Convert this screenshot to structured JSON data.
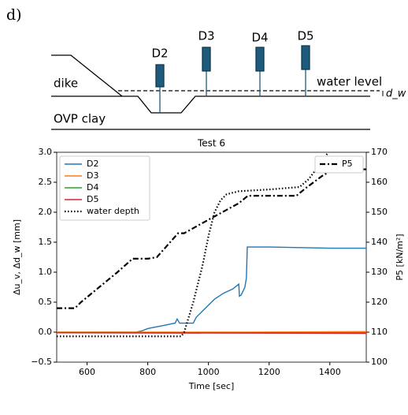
{
  "panel_label": "d)",
  "diagram": {
    "sensors": [
      "D2",
      "D3",
      "D4",
      "D5"
    ],
    "dike": "dike",
    "water_level": "water level",
    "clay": "OVP clay",
    "water_depth": "d_w"
  },
  "chart_data": {
    "type": "line",
    "title": "Test 6",
    "x_label": "Time [sec]",
    "y_label": "Δu_v, Δd_w  [mm]",
    "y2_label": "P5  [kN/m²]",
    "xlim": [
      500,
      1520
    ],
    "xticks": [
      600,
      800,
      1000,
      1200,
      1400
    ],
    "ylim": [
      -0.5,
      3.0
    ],
    "yticks": [
      {
        "value": -0.5,
        "label": "−0.5"
      },
      {
        "value": 0,
        "label": "0.0"
      },
      0.5,
      {
        "value": 1,
        "label": "1.0"
      },
      1.5,
      {
        "value": 2,
        "label": "2.0"
      },
      2.5,
      {
        "value": 3,
        "label": "3.0"
      }
    ],
    "y2lim": [
      100,
      170
    ],
    "y2ticks": [
      100,
      110,
      120,
      130,
      140,
      150,
      160,
      170
    ],
    "series": [
      {
        "name": "D2",
        "color": "#1f77b4",
        "linestyle": "solid",
        "x": [
          500,
          760,
          780,
          800,
          850,
          880,
          890,
          897,
          905,
          950,
          960,
          980,
          1000,
          1020,
          1050,
          1080,
          1095,
          1100,
          1102,
          1108,
          1120,
          1125,
          1128,
          1200,
          1300,
          1400,
          1520
        ],
        "values": [
          0,
          0,
          0.02,
          0.06,
          0.11,
          0.14,
          0.15,
          0.22,
          0.15,
          0.15,
          0.25,
          0.35,
          0.45,
          0.55,
          0.65,
          0.72,
          0.78,
          0.8,
          0.6,
          0.62,
          0.75,
          0.9,
          1.42,
          1.42,
          1.41,
          1.4,
          1.4
        ]
      },
      {
        "name": "D3",
        "color": "#ff7f0e",
        "linestyle": "solid",
        "x": [
          500,
          1120,
          1520
        ],
        "values": [
          0,
          0,
          0.01
        ]
      },
      {
        "name": "D4",
        "color": "#2ca02c",
        "linestyle": "solid",
        "x": [
          500,
          1520
        ],
        "values": [
          -0.01,
          -0.01
        ]
      },
      {
        "name": "D5",
        "color": "#d62728",
        "linestyle": "solid",
        "x": [
          500,
          1520
        ],
        "values": [
          -0.01,
          -0.02
        ]
      },
      {
        "name": "water depth",
        "color": "#000000",
        "linestyle": "dotted",
        "x": [
          500,
          910,
          920,
          950,
          980,
          1000,
          1020,
          1040,
          1060,
          1100,
          1200,
          1300,
          1330,
          1360,
          1395
        ],
        "values": [
          -0.07,
          -0.07,
          0.0,
          0.5,
          1.1,
          1.6,
          2.0,
          2.2,
          2.3,
          2.35,
          2.38,
          2.42,
          2.55,
          2.75,
          3.0
        ]
      },
      {
        "name": "P5",
        "color": "#000000",
        "linestyle": "dashdot",
        "axis": "y2",
        "x": [
          500,
          560,
          580,
          700,
          750,
          800,
          830,
          900,
          920,
          1000,
          1100,
          1130,
          1200,
          1290,
          1320,
          1380,
          1400,
          1450,
          1520
        ],
        "values": [
          118,
          118,
          120,
          130,
          134.5,
          134.5,
          135,
          143,
          143,
          147.5,
          153,
          155.5,
          155.5,
          155.5,
          158,
          162.5,
          163.5,
          164.5,
          164.3
        ]
      }
    ]
  }
}
